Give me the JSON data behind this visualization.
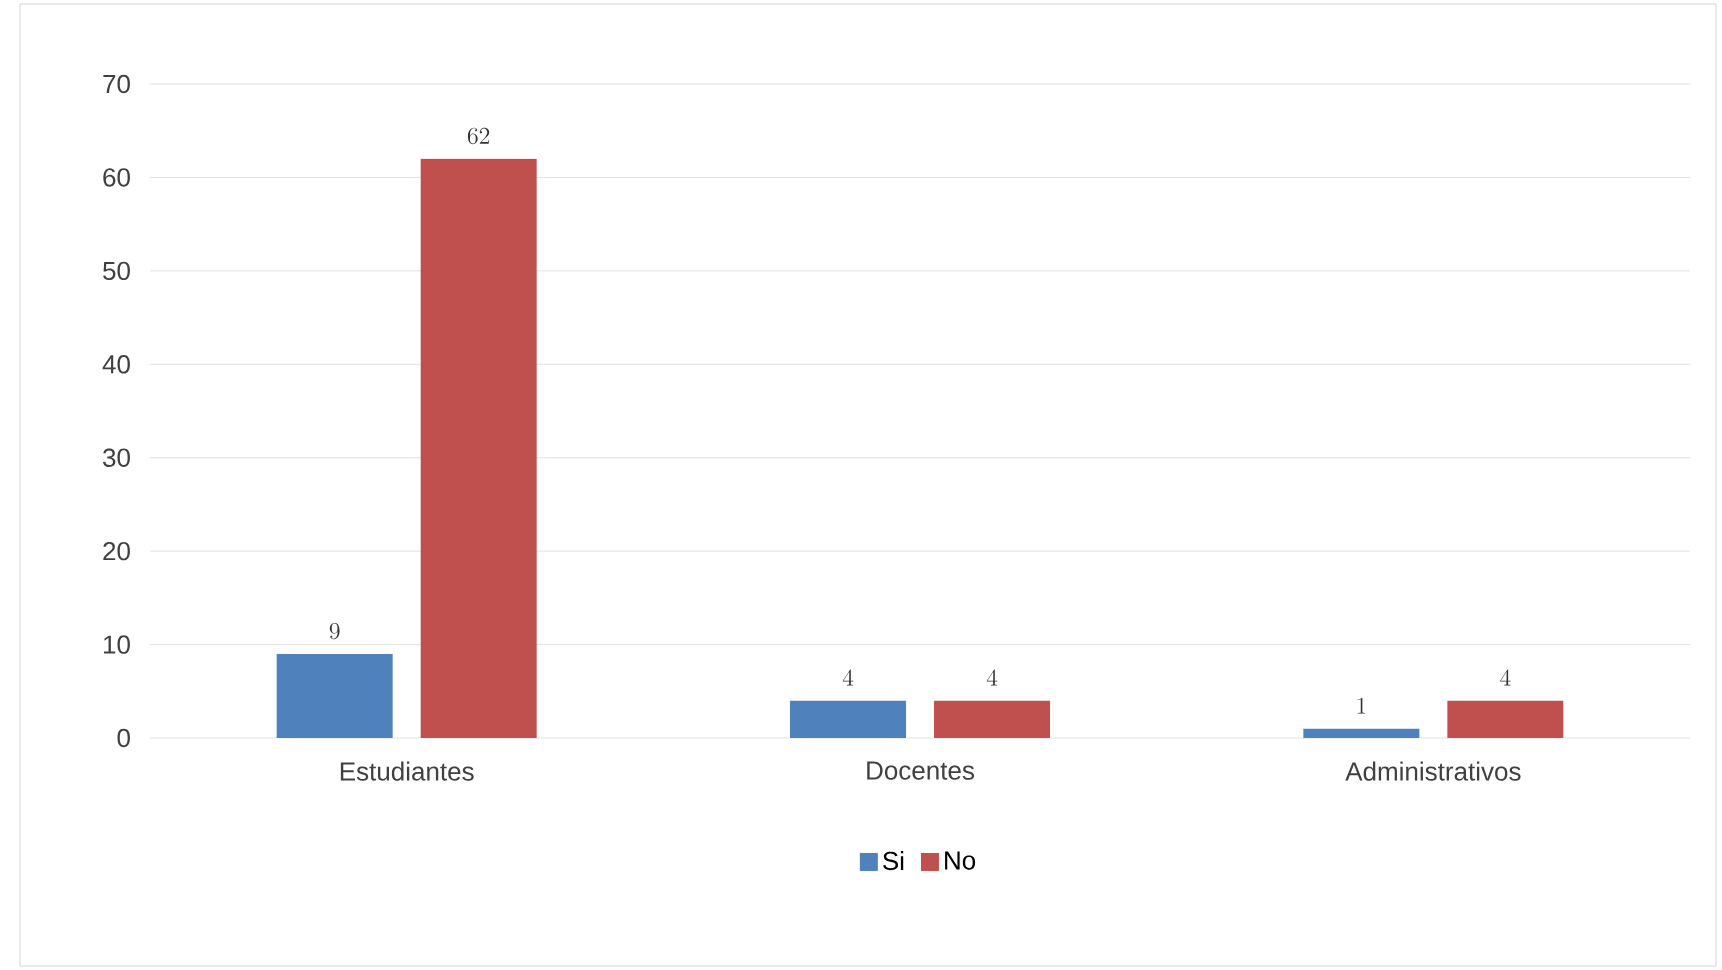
{
  "chart_data": {
    "type": "bar",
    "categories": [
      "Estudiantes",
      "Docentes",
      "Administrativos"
    ],
    "series": [
      {
        "name": "Si",
        "color": "#4f81bd",
        "values": [
          9,
          4,
          1
        ]
      },
      {
        "name": "No",
        "color": "#c0504d",
        "values": [
          62,
          4,
          4
        ]
      }
    ],
    "ylim": [
      0,
      70
    ],
    "yticks": [
      0,
      10,
      20,
      30,
      40,
      50,
      60,
      70
    ],
    "grid": "y",
    "legend": "bottom",
    "data_labels": true
  }
}
